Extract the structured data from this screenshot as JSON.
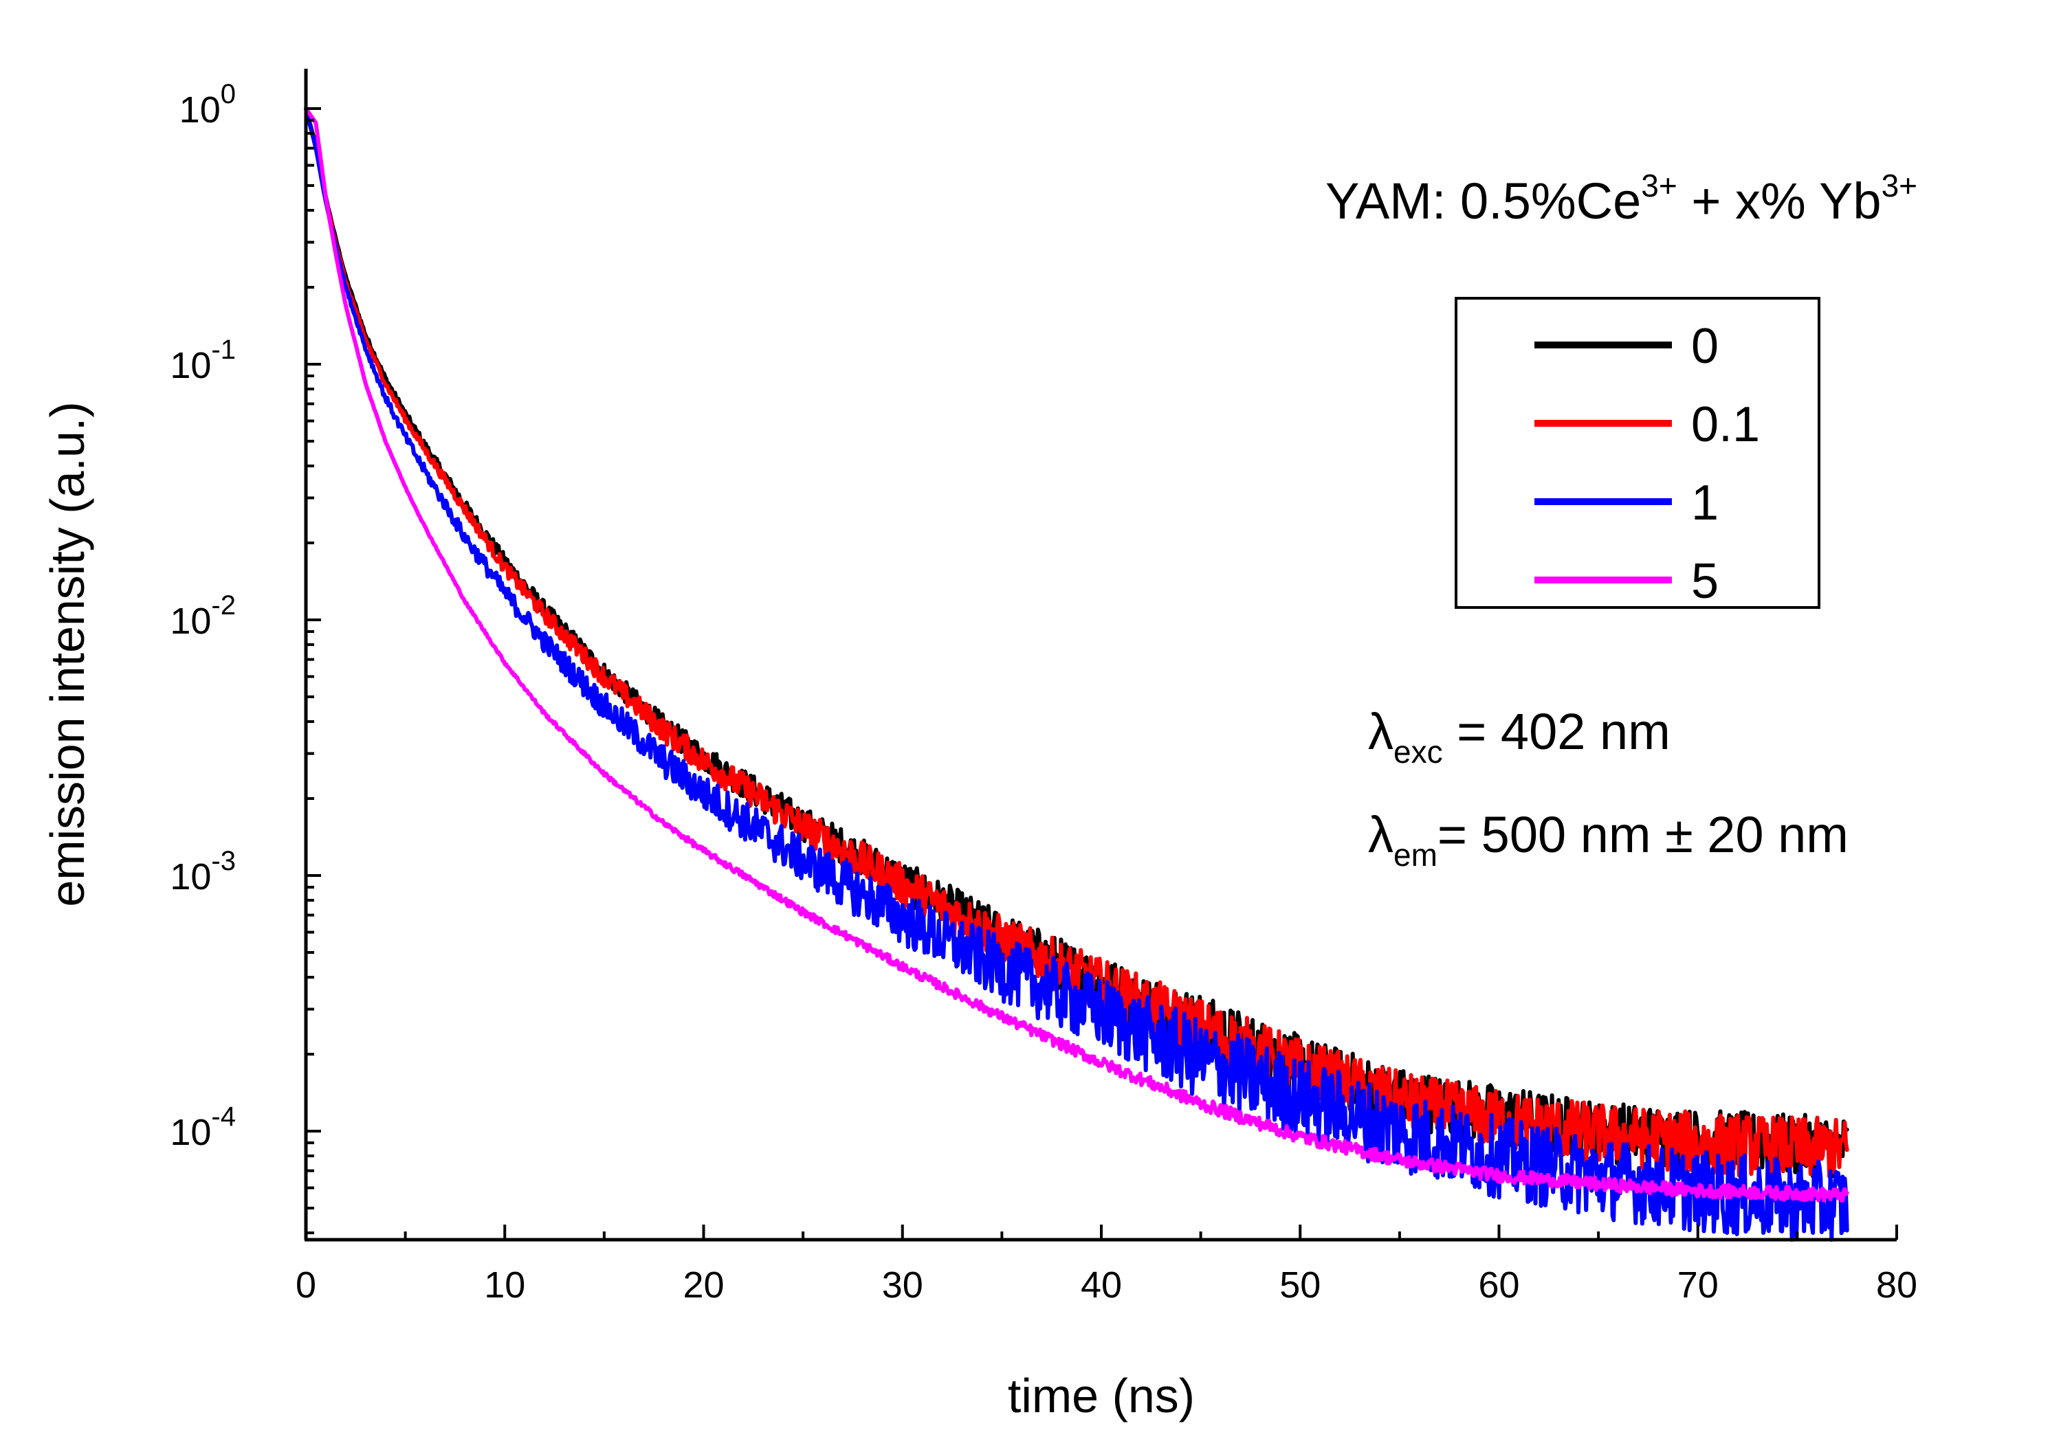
{
  "chart_data": {
    "type": "line",
    "title": "",
    "xlabel": "time (ns)",
    "ylabel": "emission intensity (a.u.)",
    "xlim": [
      0,
      80
    ],
    "ylim": [
      4e-05,
      1.3
    ],
    "yscale": "log",
    "x_ticks": [
      0,
      10,
      20,
      30,
      40,
      50,
      60,
      70,
      80
    ],
    "y_ticks": [
      {
        "value": 1,
        "base": "10",
        "exp": "0"
      },
      {
        "value": 0.1,
        "base": "10",
        "exp": "-1"
      },
      {
        "value": 0.01,
        "base": "10",
        "exp": "-2"
      },
      {
        "value": 0.001,
        "base": "10",
        "exp": "-3"
      },
      {
        "value": 0.0001,
        "base": "10",
        "exp": "-4"
      }
    ],
    "grid": false,
    "legend_position": "upper-right",
    "legend_title": {
      "prefix": "YAM: 0.5%Ce",
      "sup1": "3+",
      "middle": " + x% Yb",
      "sup2": "3+"
    },
    "annotations": [
      {
        "symbol": "λ",
        "sub": "exc",
        "text": " = 402 nm"
      },
      {
        "symbol": "λ",
        "sub": "em",
        "text": "= 500 nm ± 20 nm"
      }
    ],
    "series": [
      {
        "name": "0",
        "color": "#000000",
        "noise": 0.12,
        "x": [
          0,
          0.5,
          1,
          1.5,
          2,
          3,
          4,
          5,
          6,
          8,
          10,
          12,
          15,
          18,
          20,
          25,
          30,
          35,
          40,
          45,
          50,
          55,
          60,
          65,
          70,
          75,
          77.5
        ],
        "y": [
          1.0,
          0.72,
          0.45,
          0.31,
          0.22,
          0.13,
          0.088,
          0.064,
          0.048,
          0.028,
          0.017,
          0.011,
          0.0062,
          0.0038,
          0.0029,
          0.0016,
          0.00095,
          0.00058,
          0.00038,
          0.00026,
          0.00018,
          0.000135,
          0.000115,
          0.0001,
          9.25e-05,
          8.8e-05,
          8.7e-05
        ]
      },
      {
        "name": "0.1",
        "color": "#ff0000",
        "noise": 0.12,
        "x": [
          0,
          0.5,
          1,
          1.5,
          2,
          3,
          4,
          5,
          6,
          8,
          10,
          12,
          15,
          18,
          20,
          25,
          30,
          35,
          40,
          45,
          50,
          55,
          60,
          65,
          70,
          75,
          77.5
        ],
        "y": [
          1.0,
          0.7,
          0.44,
          0.3,
          0.21,
          0.125,
          0.084,
          0.061,
          0.046,
          0.027,
          0.016,
          0.0105,
          0.006,
          0.0037,
          0.0028,
          0.00155,
          0.00092,
          0.00056,
          0.00037,
          0.00025,
          0.000175,
          0.00013,
          0.00011,
          9.75e-05,
          9e-05,
          8.6e-05,
          8.5e-05
        ]
      },
      {
        "name": "1",
        "color": "#0000ff",
        "noise": 0.16,
        "x": [
          0,
          0.5,
          1,
          1.5,
          2,
          3,
          4,
          5,
          6,
          8,
          10,
          12,
          15,
          18,
          20,
          25,
          30,
          35,
          40,
          45,
          50,
          55,
          60,
          65,
          70,
          75,
          77.5
        ],
        "y": [
          1.0,
          0.7,
          0.43,
          0.29,
          0.2,
          0.115,
          0.074,
          0.052,
          0.038,
          0.021,
          0.0128,
          0.0082,
          0.0046,
          0.0028,
          0.0021,
          0.00115,
          0.00068,
          0.00043,
          0.00029,
          0.00019,
          0.000135,
          0.0001,
          7.9e-05,
          6.6e-05,
          5.8e-05,
          5.3e-05,
          5.2e-05
        ]
      },
      {
        "name": "5",
        "color": "#ff00ff",
        "noise": 0.025,
        "x": [
          0,
          0.5,
          1,
          1.5,
          2,
          3,
          4,
          5,
          6,
          8,
          10,
          12,
          15,
          18,
          20,
          25,
          30,
          35,
          40,
          45,
          50,
          55,
          60,
          65,
          70,
          75,
          77.5
        ],
        "y": [
          1.0,
          0.88,
          0.45,
          0.27,
          0.17,
          0.084,
          0.05,
          0.033,
          0.023,
          0.0118,
          0.0068,
          0.0043,
          0.0025,
          0.0016,
          0.00125,
          0.00072,
          0.00044,
          0.00028,
          0.000185,
          0.000128,
          9.5e-05,
          7.7e-05,
          6.7e-05,
          6.2e-05,
          5.85e-05,
          5.7e-05,
          5.6e-05
        ]
      }
    ]
  }
}
